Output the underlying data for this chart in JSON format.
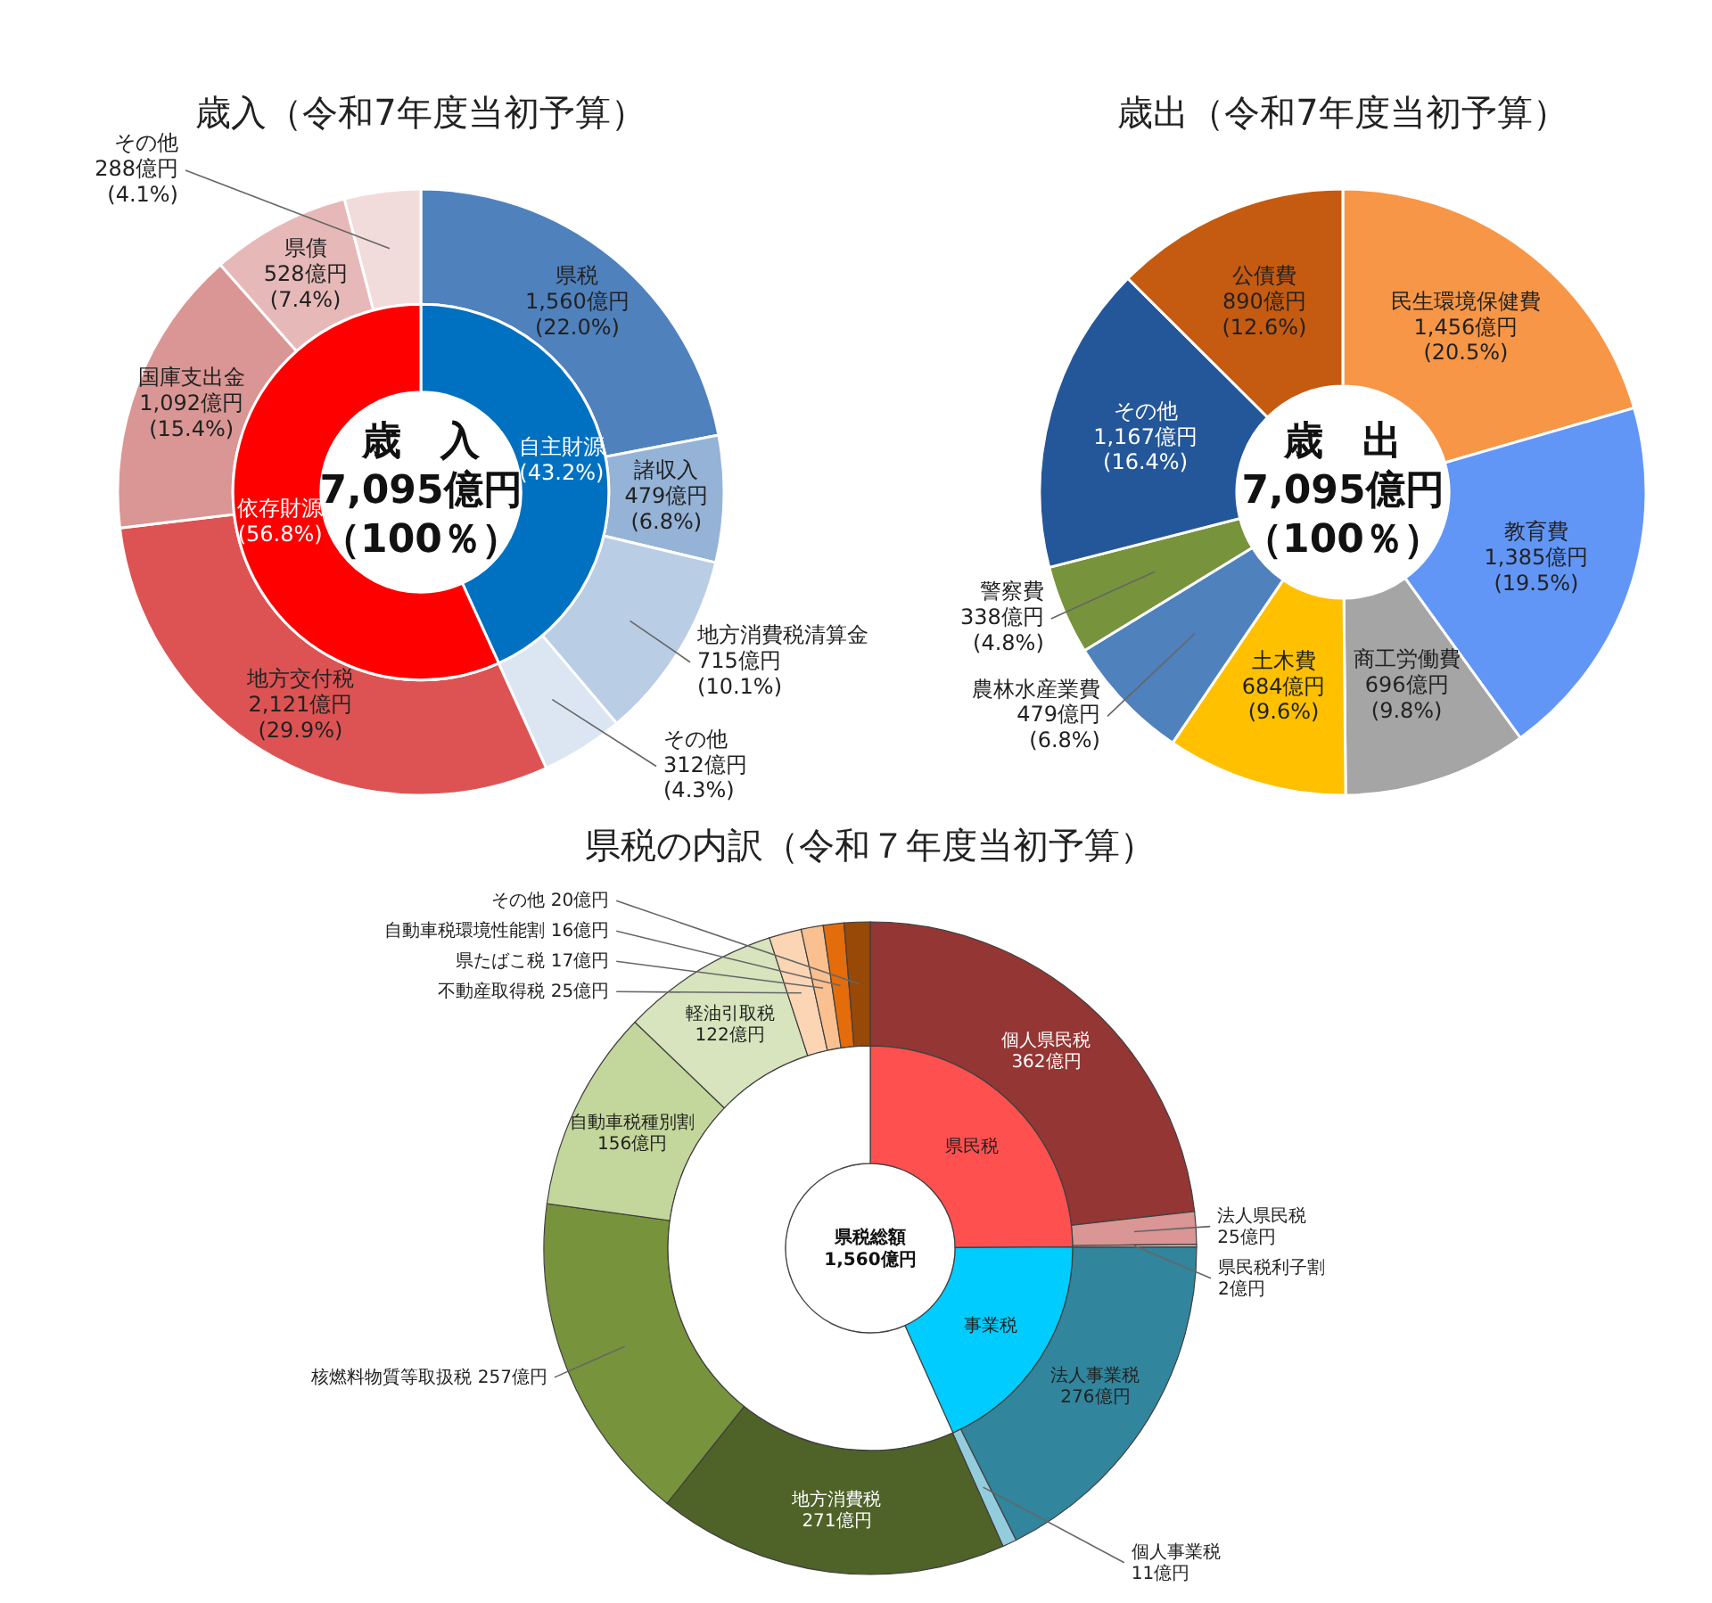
{
  "chart_data": [
    {
      "type": "donut",
      "title": "歳入（令和7年度当初予算）",
      "categories": [
        "県税",
        "諸収入",
        "地方消費税清算金",
        "その他",
        "地方交付税",
        "国庫支出金",
        "県債",
        "その他"
      ],
      "values": [
        1560,
        479,
        715,
        312,
        2121,
        1092,
        528,
        288
      ],
      "colors": [
        "#4f81bd",
        "#95b3d7",
        "#b9cde5",
        "#dce6f2",
        "#dd5353",
        "#d99694",
        "#e6b9b8",
        "#f2dcdb"
      ],
      "value_labels": [
        "1,560億円\n(22.0%)",
        "479億円\n(6.8%)",
        "715億円\n(10.1%)",
        "312億円\n(4.3%)",
        "2,121億円\n(29.9%)",
        "1,092億円\n(15.4%)",
        "528億円\n(7.4%)",
        "288億円\n(4.1%)"
      ]
    },
    {
      "type": "donut",
      "annotations": [
        "歳　入",
        "7,095億円",
        "（100％）"
      ],
      "categories": [
        "自主財源",
        "依存財源"
      ],
      "values": [
        43.2,
        56.8
      ],
      "colors": [
        "#0070c0",
        "#ff0000"
      ],
      "value_labels": [
        "(43.2%)",
        "(56.8%)"
      ]
    },
    {
      "type": "donut",
      "title": "歳出（令和7年度当初予算）",
      "annotations": [
        "歳　出",
        "7,095億円",
        "（100％）"
      ],
      "categories": [
        "民生環境保健費",
        "教育費",
        "商工労働費",
        "土木費",
        "農林水産業費",
        "警察費",
        "その他",
        "公債費"
      ],
      "values": [
        1456,
        1385,
        696,
        684,
        479,
        338,
        1167,
        890
      ],
      "colors": [
        "#f79646",
        "#6196f7",
        "#a5a5a5",
        "#ffc000",
        "#4f81bd",
        "#77933c",
        "#24569a",
        "#c55a11"
      ],
      "value_labels": [
        "1,456億円\n(20.5%)",
        "1,385億円\n(19.5%)",
        "696億円\n(9.8%)",
        "684億円\n(9.6%)",
        "479億円\n(6.8%)",
        "338億円\n(4.8%)",
        "1,167億円\n(16.4%)",
        "890億円\n(12.6%)"
      ]
    },
    {
      "type": "donut",
      "title": "県税の内訳（令和７年度当初予算）",
      "categories": [
        "個人県民税",
        "法人県民税",
        "県民税利子割",
        "法人事業税",
        "個人事業税",
        "地方消費税",
        "核燃料物質等取扱税",
        "自動車税種別割",
        "軽油引取税",
        "不動産取得税",
        "県たばこ税",
        "自動車税環境性能割",
        "その他"
      ],
      "values": [
        362,
        25,
        2,
        276,
        11,
        271,
        257,
        156,
        122,
        25,
        17,
        16,
        20
      ],
      "colors": [
        "#943634",
        "#d99694",
        "#e6b9b8",
        "#31859c",
        "#93cddd",
        "#4f6228",
        "#77933c",
        "#c3d69b",
        "#d7e4bd",
        "#fcd5b5",
        "#fac090",
        "#e46c0a",
        "#984807"
      ],
      "value_labels": [
        "362億円",
        "25億円",
        "2億円",
        "276億円",
        "11億円",
        "271億円",
        "257億円",
        "156億円",
        "122億円",
        "25億円",
        "17億円",
        "16億円",
        "20億円"
      ]
    },
    {
      "type": "donut",
      "annotations": [
        "県税総額",
        "1,560億円"
      ],
      "categories": [
        "県民税",
        "事業税",
        null
      ],
      "values": [
        24.9,
        18.4,
        56.7
      ],
      "colors": [
        "#ff5050",
        "#00ccff",
        "#ffffff"
      ]
    }
  ]
}
